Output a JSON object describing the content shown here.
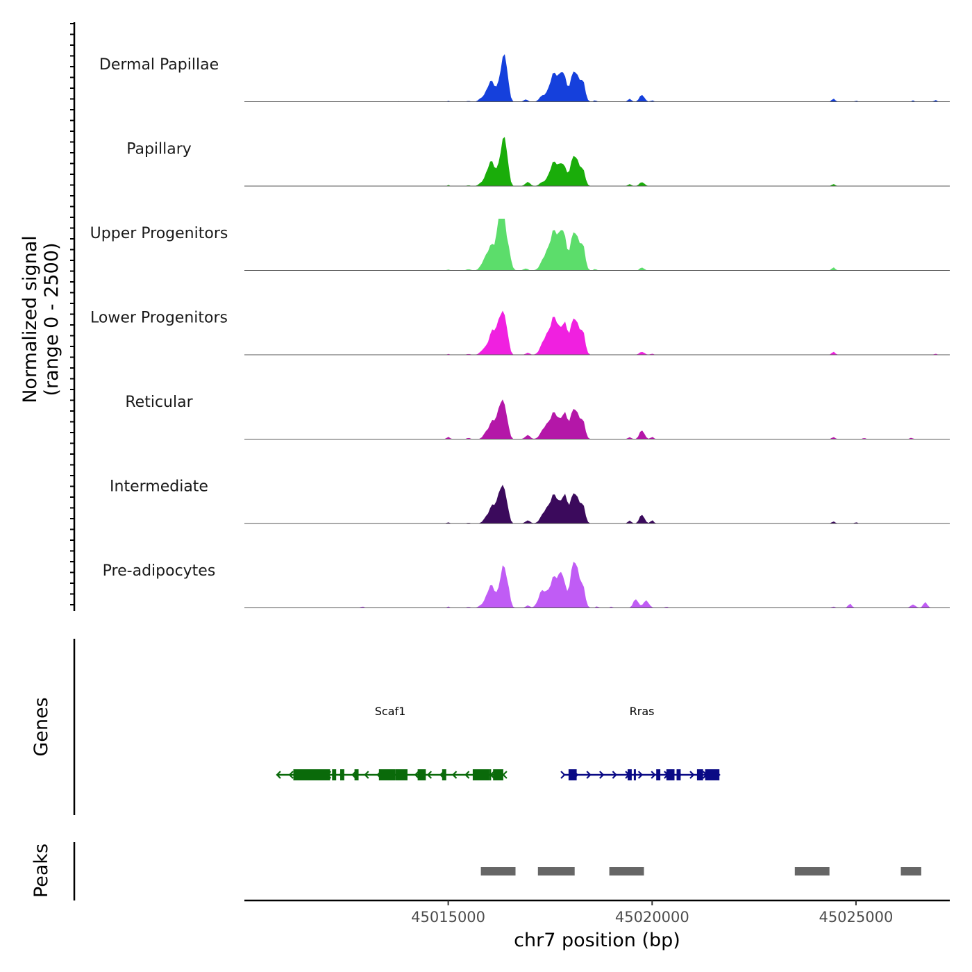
{
  "chart_data": {
    "type": "area",
    "title": "",
    "chromosome": "chr7",
    "xlabel": "chr7 position (bp)",
    "ylabel": "Normalized signal",
    "ylabel_range": "(range 0 - 2500)",
    "ylim": [
      0,
      2500
    ],
    "xlim": [
      45010000,
      45027300
    ],
    "x_ticks": [
      45015000,
      45020000,
      45025000
    ],
    "x_tick_labels": [
      "45015000",
      "45020000",
      "45025000"
    ],
    "series": [
      {
        "name": "Dermal Papillae",
        "color": "#1540dc",
        "peaks": [
          {
            "x": 45013800,
            "w": 20,
            "h": 30
          },
          {
            "x": 45015000,
            "w": 25,
            "h": 40
          },
          {
            "x": 45015500,
            "w": 40,
            "h": 40
          },
          {
            "x": 45015800,
            "w": 60,
            "h": 120
          },
          {
            "x": 45016050,
            "w": 110,
            "h": 1000
          },
          {
            "x": 45016320,
            "w": 70,
            "h": 1500
          },
          {
            "x": 45016420,
            "w": 60,
            "h": 1300
          },
          {
            "x": 45016900,
            "w": 45,
            "h": 120
          },
          {
            "x": 45017300,
            "w": 70,
            "h": 250
          },
          {
            "x": 45017600,
            "w": 120,
            "h": 1300
          },
          {
            "x": 45017820,
            "w": 70,
            "h": 1100
          },
          {
            "x": 45018100,
            "w": 100,
            "h": 1500
          },
          {
            "x": 45018300,
            "w": 60,
            "h": 900
          },
          {
            "x": 45018600,
            "w": 30,
            "h": 80
          },
          {
            "x": 45019450,
            "w": 40,
            "h": 150
          },
          {
            "x": 45019750,
            "w": 60,
            "h": 350
          },
          {
            "x": 45020000,
            "w": 40,
            "h": 60
          },
          {
            "x": 45024450,
            "w": 40,
            "h": 150
          },
          {
            "x": 45025000,
            "w": 30,
            "h": 50
          },
          {
            "x": 45026400,
            "w": 30,
            "h": 60
          },
          {
            "x": 45026950,
            "w": 35,
            "h": 80
          }
        ]
      },
      {
        "name": "Papillary",
        "color": "#1aad0a",
        "peaks": [
          {
            "x": 45015000,
            "w": 25,
            "h": 50
          },
          {
            "x": 45015500,
            "w": 40,
            "h": 40
          },
          {
            "x": 45015800,
            "w": 60,
            "h": 100
          },
          {
            "x": 45016050,
            "w": 110,
            "h": 1200
          },
          {
            "x": 45016320,
            "w": 70,
            "h": 1600
          },
          {
            "x": 45016420,
            "w": 60,
            "h": 1300
          },
          {
            "x": 45016950,
            "w": 60,
            "h": 200
          },
          {
            "x": 45017300,
            "w": 70,
            "h": 150
          },
          {
            "x": 45017600,
            "w": 120,
            "h": 1100
          },
          {
            "x": 45017820,
            "w": 70,
            "h": 800
          },
          {
            "x": 45018100,
            "w": 100,
            "h": 1500
          },
          {
            "x": 45018300,
            "w": 60,
            "h": 700
          },
          {
            "x": 45019450,
            "w": 40,
            "h": 100
          },
          {
            "x": 45019750,
            "w": 60,
            "h": 200
          },
          {
            "x": 45024450,
            "w": 40,
            "h": 100
          }
        ]
      },
      {
        "name": "Upper Progenitors",
        "color": "#5cdd6b",
        "peaks": [
          {
            "x": 45015000,
            "w": 40,
            "h": 40
          },
          {
            "x": 45015500,
            "w": 50,
            "h": 60
          },
          {
            "x": 45015850,
            "w": 70,
            "h": 250
          },
          {
            "x": 45016050,
            "w": 110,
            "h": 1200
          },
          {
            "x": 45016250,
            "w": 70,
            "h": 1600
          },
          {
            "x": 45016330,
            "w": 60,
            "h": 2300
          },
          {
            "x": 45016450,
            "w": 70,
            "h": 1100
          },
          {
            "x": 45016900,
            "w": 50,
            "h": 100
          },
          {
            "x": 45017350,
            "w": 90,
            "h": 500
          },
          {
            "x": 45017600,
            "w": 120,
            "h": 1800
          },
          {
            "x": 45017820,
            "w": 70,
            "h": 1500
          },
          {
            "x": 45018100,
            "w": 100,
            "h": 1900
          },
          {
            "x": 45018300,
            "w": 60,
            "h": 1100
          },
          {
            "x": 45018600,
            "w": 30,
            "h": 80
          },
          {
            "x": 45019750,
            "w": 50,
            "h": 150
          },
          {
            "x": 45024450,
            "w": 40,
            "h": 150
          }
        ]
      },
      {
        "name": "Lower Progenitors",
        "color": "#f020e0",
        "peaks": [
          {
            "x": 45015000,
            "w": 30,
            "h": 40
          },
          {
            "x": 45015500,
            "w": 50,
            "h": 40
          },
          {
            "x": 45015850,
            "w": 70,
            "h": 200
          },
          {
            "x": 45016100,
            "w": 110,
            "h": 1200
          },
          {
            "x": 45016300,
            "w": 70,
            "h": 1600
          },
          {
            "x": 45016420,
            "w": 60,
            "h": 1100
          },
          {
            "x": 45016950,
            "w": 50,
            "h": 100
          },
          {
            "x": 45017350,
            "w": 90,
            "h": 600
          },
          {
            "x": 45017600,
            "w": 120,
            "h": 1700
          },
          {
            "x": 45017850,
            "w": 70,
            "h": 1200
          },
          {
            "x": 45018100,
            "w": 100,
            "h": 1800
          },
          {
            "x": 45018300,
            "w": 60,
            "h": 1000
          },
          {
            "x": 45019750,
            "w": 60,
            "h": 150
          },
          {
            "x": 45020000,
            "w": 40,
            "h": 50
          },
          {
            "x": 45024450,
            "w": 40,
            "h": 150
          },
          {
            "x": 45026950,
            "w": 35,
            "h": 50
          }
        ]
      },
      {
        "name": "Reticular",
        "color": "#b417a8",
        "peaks": [
          {
            "x": 45015000,
            "w": 40,
            "h": 100
          },
          {
            "x": 45015500,
            "w": 40,
            "h": 60
          },
          {
            "x": 45015900,
            "w": 60,
            "h": 150
          },
          {
            "x": 45016100,
            "w": 110,
            "h": 900
          },
          {
            "x": 45016300,
            "w": 70,
            "h": 1500
          },
          {
            "x": 45016420,
            "w": 60,
            "h": 900
          },
          {
            "x": 45016950,
            "w": 60,
            "h": 200
          },
          {
            "x": 45017350,
            "w": 90,
            "h": 450
          },
          {
            "x": 45017600,
            "w": 120,
            "h": 1200
          },
          {
            "x": 45017850,
            "w": 70,
            "h": 1000
          },
          {
            "x": 45018100,
            "w": 100,
            "h": 1500
          },
          {
            "x": 45018300,
            "w": 60,
            "h": 800
          },
          {
            "x": 45019450,
            "w": 40,
            "h": 100
          },
          {
            "x": 45019750,
            "w": 60,
            "h": 450
          },
          {
            "x": 45020000,
            "w": 40,
            "h": 100
          },
          {
            "x": 45024450,
            "w": 40,
            "h": 100
          },
          {
            "x": 45025200,
            "w": 30,
            "h": 60
          },
          {
            "x": 45026350,
            "w": 40,
            "h": 60
          }
        ]
      },
      {
        "name": "Intermediate",
        "color": "#3b0a5c",
        "peaks": [
          {
            "x": 45015000,
            "w": 40,
            "h": 50
          },
          {
            "x": 45015500,
            "w": 40,
            "h": 40
          },
          {
            "x": 45015900,
            "w": 60,
            "h": 120
          },
          {
            "x": 45016100,
            "w": 110,
            "h": 900
          },
          {
            "x": 45016300,
            "w": 70,
            "h": 1450
          },
          {
            "x": 45016420,
            "w": 60,
            "h": 900
          },
          {
            "x": 45016950,
            "w": 60,
            "h": 150
          },
          {
            "x": 45017350,
            "w": 90,
            "h": 450
          },
          {
            "x": 45017600,
            "w": 120,
            "h": 1300
          },
          {
            "x": 45017850,
            "w": 70,
            "h": 1100
          },
          {
            "x": 45018100,
            "w": 100,
            "h": 1500
          },
          {
            "x": 45018300,
            "w": 60,
            "h": 800
          },
          {
            "x": 45019450,
            "w": 40,
            "h": 150
          },
          {
            "x": 45019750,
            "w": 60,
            "h": 450
          },
          {
            "x": 45020000,
            "w": 40,
            "h": 150
          },
          {
            "x": 45024450,
            "w": 40,
            "h": 100
          },
          {
            "x": 45025000,
            "w": 35,
            "h": 60
          }
        ]
      },
      {
        "name": "Pre-adipocytes",
        "color": "#c05cf5",
        "peaks": [
          {
            "x": 45012900,
            "w": 40,
            "h": 60
          },
          {
            "x": 45015000,
            "w": 30,
            "h": 60
          },
          {
            "x": 45015500,
            "w": 40,
            "h": 50
          },
          {
            "x": 45015800,
            "w": 60,
            "h": 80
          },
          {
            "x": 45016050,
            "w": 110,
            "h": 1100
          },
          {
            "x": 45016330,
            "w": 70,
            "h": 1700
          },
          {
            "x": 45016450,
            "w": 60,
            "h": 900
          },
          {
            "x": 45016950,
            "w": 50,
            "h": 120
          },
          {
            "x": 45017300,
            "w": 90,
            "h": 800
          },
          {
            "x": 45017600,
            "w": 120,
            "h": 1400
          },
          {
            "x": 45017800,
            "w": 70,
            "h": 1200
          },
          {
            "x": 45018100,
            "w": 100,
            "h": 2300
          },
          {
            "x": 45018300,
            "w": 60,
            "h": 900
          },
          {
            "x": 45018650,
            "w": 30,
            "h": 80
          },
          {
            "x": 45019000,
            "w": 30,
            "h": 60
          },
          {
            "x": 45019600,
            "w": 60,
            "h": 450
          },
          {
            "x": 45019850,
            "w": 70,
            "h": 350
          },
          {
            "x": 45020350,
            "w": 30,
            "h": 60
          },
          {
            "x": 45024450,
            "w": 40,
            "h": 60
          },
          {
            "x": 45024850,
            "w": 45,
            "h": 200
          },
          {
            "x": 45026400,
            "w": 60,
            "h": 150
          },
          {
            "x": 45026700,
            "w": 50,
            "h": 250
          }
        ]
      }
    ],
    "genes": [
      {
        "name": "Scaf1",
        "strand": "-",
        "color": "#0a6a0a",
        "start": 45010800,
        "end": 45016350,
        "exons": [
          [
            45011200,
            45012100
          ],
          [
            45012150,
            45012250
          ],
          [
            45012350,
            45012450
          ],
          [
            45012700,
            45012800
          ],
          [
            45013300,
            45013700
          ],
          [
            45013700,
            45014000
          ],
          [
            45014250,
            45014450
          ],
          [
            45014850,
            45014950
          ],
          [
            45015600,
            45016000
          ],
          [
            45016000,
            45016050
          ],
          [
            45016100,
            45016350
          ]
        ]
      },
      {
        "name": "Rras",
        "strand": "+",
        "color": "#0a0a85",
        "start": 45017850,
        "end": 45021650,
        "exons": [
          [
            45017950,
            45018150
          ],
          [
            45019400,
            45019500
          ],
          [
            45019550,
            45019600
          ],
          [
            45020100,
            45020200
          ],
          [
            45020350,
            45020550
          ],
          [
            45020600,
            45020700
          ],
          [
            45021100,
            45021250
          ],
          [
            45021300,
            45021650
          ]
        ]
      }
    ],
    "peaks_track": [
      [
        45015800,
        45016650
      ],
      [
        45017200,
        45018100
      ],
      [
        45018950,
        45019800
      ],
      [
        45023500,
        45024350
      ],
      [
        45026100,
        45026600
      ]
    ],
    "track_titles": {
      "genes": "Genes",
      "peaks": "Peaks"
    }
  }
}
